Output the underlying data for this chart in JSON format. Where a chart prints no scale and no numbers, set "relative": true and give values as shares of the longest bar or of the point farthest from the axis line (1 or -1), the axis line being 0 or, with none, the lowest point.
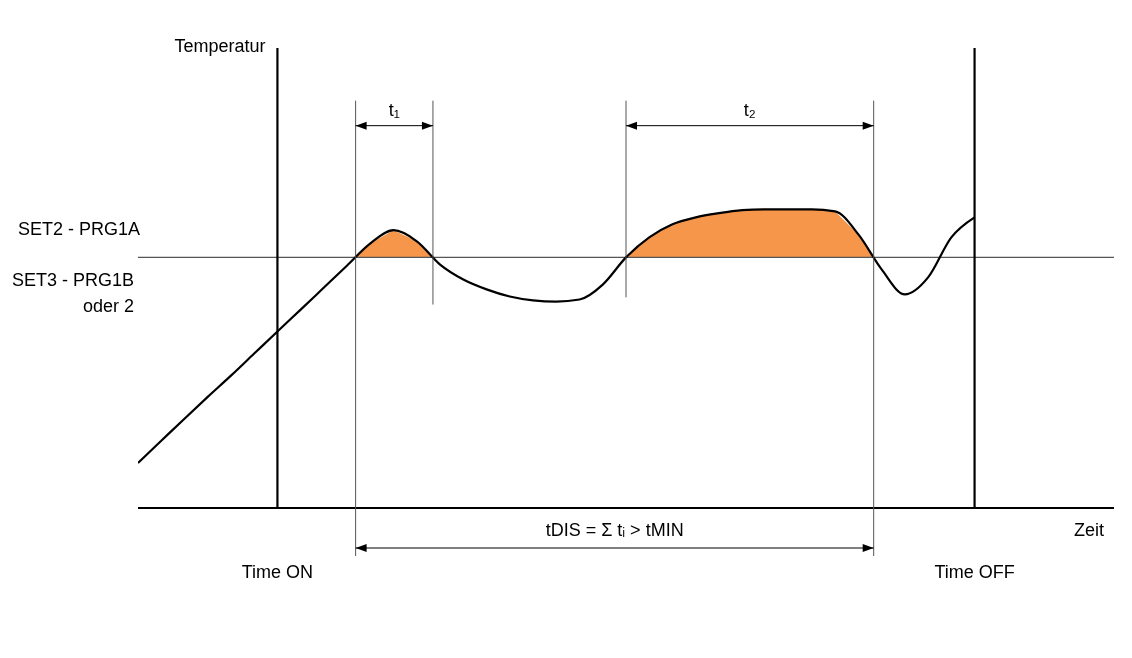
{
  "chart_data": {
    "type": "line",
    "relative": true,
    "xlabel": "Zeit",
    "marker": "none",
    "categories": [
      null,
      null,
      null,
      null,
      null,
      null,
      "Time ON",
      null,
      null,
      null,
      null,
      null,
      null,
      null,
      null,
      null,
      null,
      null,
      null,
      null,
      null,
      null,
      null,
      null,
      null,
      null,
      null,
      null,
      null,
      null,
      null,
      null,
      null,
      null,
      null,
      null,
      "Time OFF"
    ],
    "series": [
      {
        "color": "#000000",
        "values": [
          0.151,
          0.225,
          0.299,
          0.372,
          0.443,
          0.517,
          0.591,
          0.664,
          0.738,
          0.812,
          0.886,
          0.93,
          0.893,
          0.815,
          0.765,
          0.732,
          0.708,
          0.695,
          0.691,
          0.698,
          0.748,
          0.839,
          0.906,
          0.95,
          0.973,
          0.987,
          0.997,
          1,
          1,
          1,
          0.993,
          0.916,
          0.799,
          0.715,
          0.772,
          0.906,
          0.973
        ]
      }
    ],
    "ref_lines": [
      {
        "axis": "y",
        "value": 0.839,
        "label": "SET2 - PRG1A",
        "color": "#555555"
      },
      {
        "axis": "x",
        "value": "Time ON",
        "color": "#000000"
      },
      {
        "axis": "x",
        "value": "Time OFF",
        "color": "#000000"
      }
    ],
    "annotations": [
      "SET3 - PRG1B oder 2",
      "t₁",
      "t₂",
      "tDIS = Σ tᵢ > tMIN",
      "Temperatur"
    ]
  }
}
